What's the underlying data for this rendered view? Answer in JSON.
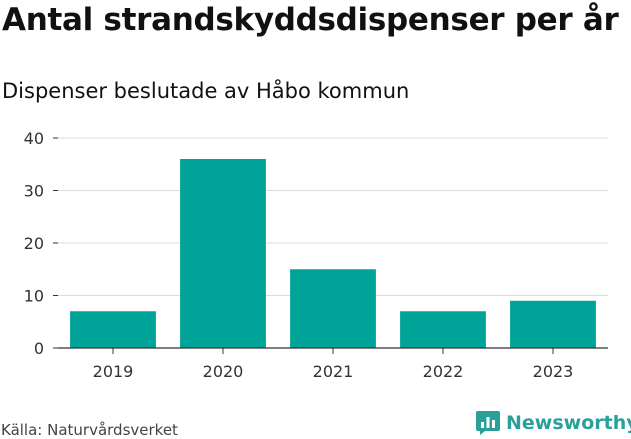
{
  "header": {
    "title": "Antal strandskyddsdispenser per år",
    "subtitle": "Dispenser beslutade av Håbo kommun"
  },
  "footer": {
    "source": "Källa: Naturvårdsverket",
    "brand": "Newsworthy",
    "brand_icon": "newsworthy-logo-icon"
  },
  "colors": {
    "bar": "#00a398",
    "grid": "#dcdcdc",
    "axis": "#333333",
    "tick_text": "#333333",
    "brand": "#2aa198"
  },
  "chart_data": {
    "type": "bar",
    "title": "Antal strandskyddsdispenser per år",
    "subtitle": "Dispenser beslutade av Håbo kommun",
    "xlabel": "",
    "ylabel": "",
    "categories": [
      "2019",
      "2020",
      "2021",
      "2022",
      "2023"
    ],
    "values": [
      7,
      36,
      15,
      7,
      9
    ],
    "ylim": [
      0,
      40
    ],
    "yticks": [
      0,
      10,
      20,
      30,
      40
    ],
    "grid": true,
    "legend": "none"
  }
}
